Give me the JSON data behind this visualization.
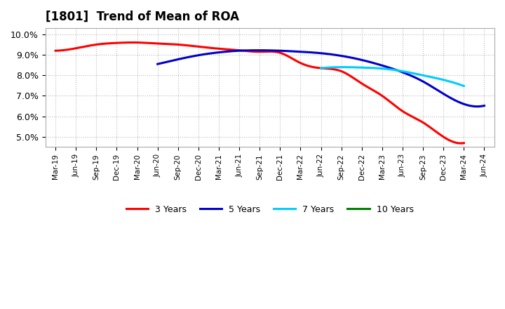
{
  "title": "[1801]  Trend of Mean of ROA",
  "ylim": [
    0.045,
    0.103
  ],
  "yticks": [
    0.05,
    0.06,
    0.07,
    0.08,
    0.09,
    0.1
  ],
  "ytick_labels": [
    "5.0%",
    "6.0%",
    "7.0%",
    "8.0%",
    "9.0%",
    "10.0%"
  ],
  "background_color": "#ffffff",
  "grid_color": "#bbbbbb",
  "series": {
    "3 Years": {
      "color": "#ff0000",
      "x_indices": [
        0,
        1,
        2,
        3,
        4,
        5,
        6,
        7,
        8,
        9,
        10,
        11,
        12,
        13,
        14,
        15,
        16,
        17,
        18,
        19,
        20
      ],
      "y": [
        0.092,
        0.0932,
        0.095,
        0.0958,
        0.096,
        0.0955,
        0.095,
        0.094,
        0.093,
        0.0922,
        0.0915,
        0.091,
        0.086,
        0.0835,
        0.082,
        0.076,
        0.07,
        0.0625,
        0.057,
        0.05,
        0.047
      ]
    },
    "5 Years": {
      "color": "#0000cc",
      "x_indices": [
        5,
        6,
        7,
        8,
        9,
        10,
        11,
        12,
        13,
        14,
        15,
        16,
        17,
        18,
        19,
        20,
        21
      ],
      "y": [
        0.0855,
        0.0878,
        0.0898,
        0.0912,
        0.092,
        0.0922,
        0.092,
        0.0915,
        0.0908,
        0.0895,
        0.0875,
        0.0848,
        0.0815,
        0.077,
        0.071,
        0.066,
        0.0652
      ]
    },
    "7 Years": {
      "color": "#00ccff",
      "x_indices": [
        13,
        14,
        15,
        16,
        17,
        18,
        19,
        20
      ],
      "y": [
        0.0835,
        0.084,
        0.0838,
        0.0833,
        0.082,
        0.08,
        0.0778,
        0.0748
      ]
    },
    "10 Years": {
      "color": "#008000",
      "x_indices": [],
      "y": []
    }
  },
  "x_labels": [
    "Mar-19",
    "Jun-19",
    "Sep-19",
    "Dec-19",
    "Mar-20",
    "Jun-20",
    "Sep-20",
    "Dec-20",
    "Mar-21",
    "Jun-21",
    "Sep-21",
    "Dec-21",
    "Mar-22",
    "Jun-22",
    "Sep-22",
    "Dec-22",
    "Mar-23",
    "Jun-23",
    "Sep-23",
    "Dec-23",
    "Mar-24",
    "Jun-24"
  ],
  "legend_colors": [
    "#ff0000",
    "#0000cc",
    "#00ccff",
    "#008000"
  ],
  "legend_labels": [
    "3 Years",
    "5 Years",
    "7 Years",
    "10 Years"
  ]
}
